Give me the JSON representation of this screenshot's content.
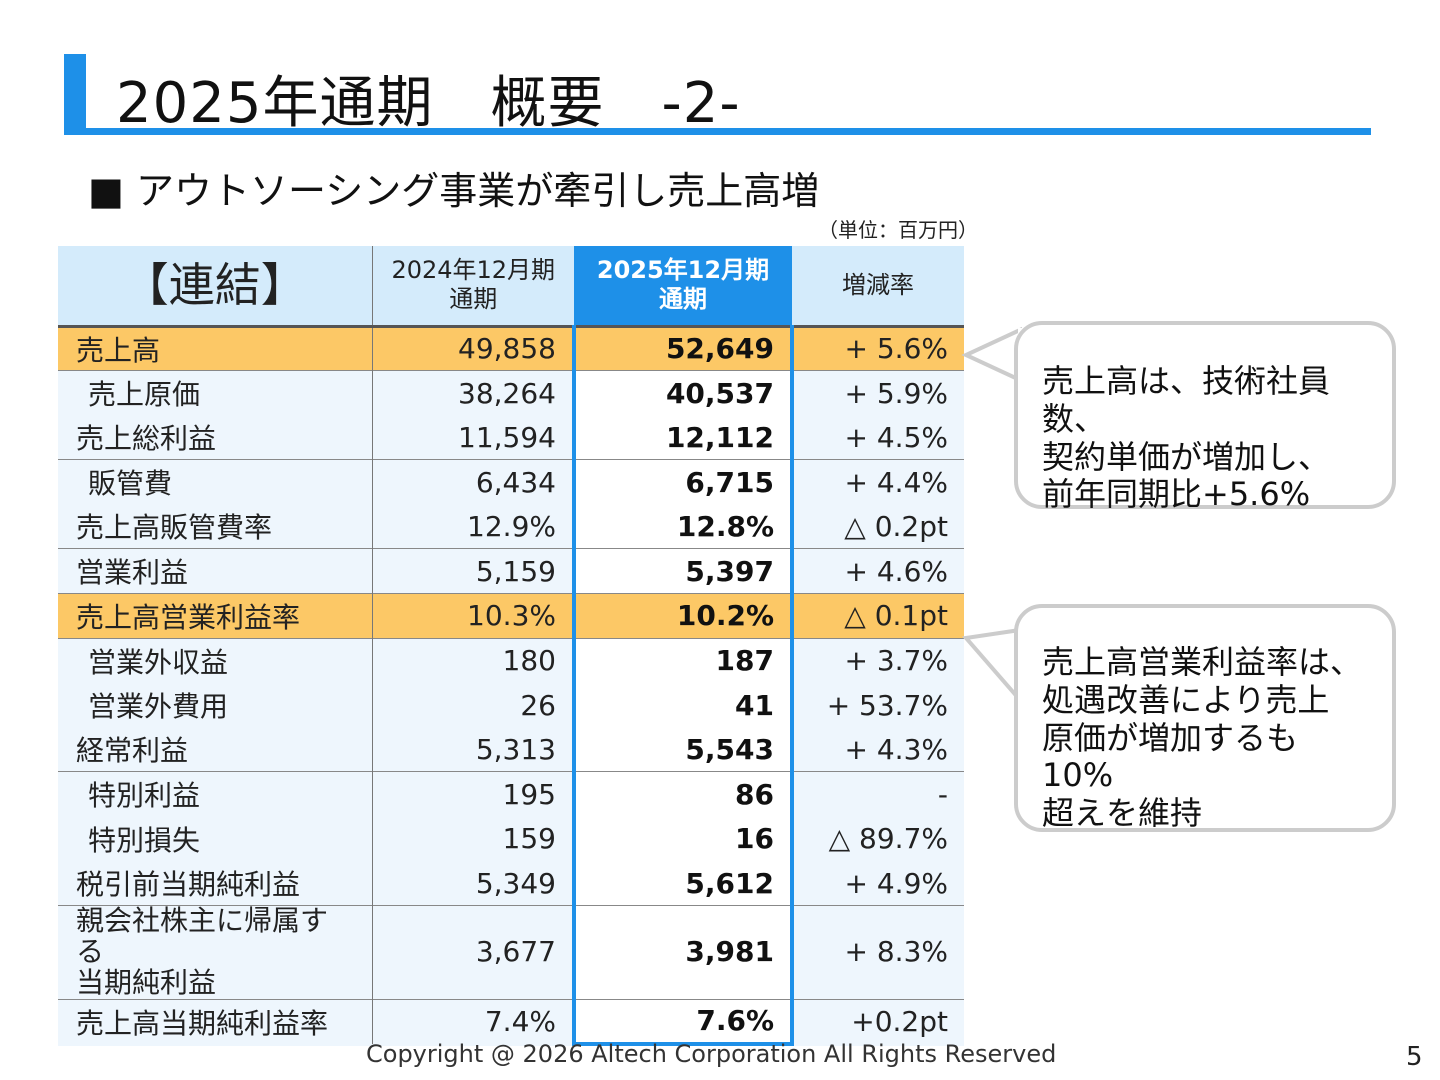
{
  "title": "2025年通期　概要　-2-",
  "subtitle": "■ アウトソーシング事業が牽引し売上高増",
  "unit": "（単位：百万円）",
  "table": {
    "headers": [
      "【連結】",
      "2024年12月期\n通期",
      "2025年12月期\n通期",
      "増減率"
    ],
    "rows": [
      {
        "label": "売上高",
        "prev": "49,858",
        "cur": "52,649",
        "chg": "+ 5.6%"
      },
      {
        "label": "売上原価",
        "prev": "38,264",
        "cur": "40,537",
        "chg": "+ 5.9%"
      },
      {
        "label": "売上総利益",
        "prev": "11,594",
        "cur": "12,112",
        "chg": "+ 4.5%"
      },
      {
        "label": "販管費",
        "prev": "6,434",
        "cur": "6,715",
        "chg": "+ 4.4%"
      },
      {
        "label": "売上高販管費率",
        "prev": "12.9%",
        "cur": "12.8%",
        "chg": "△ 0.2pt"
      },
      {
        "label": "営業利益",
        "prev": "5,159",
        "cur": "5,397",
        "chg": "+ 4.6%"
      },
      {
        "label": "売上高営業利益率",
        "prev": "10.3%",
        "cur": "10.2%",
        "chg": "△ 0.1pt"
      },
      {
        "label": "営業外収益",
        "prev": "180",
        "cur": "187",
        "chg": "+ 3.7%"
      },
      {
        "label": "営業外費用",
        "prev": "26",
        "cur": "41",
        "chg": "+ 53.7%"
      },
      {
        "label": "経常利益",
        "prev": "5,313",
        "cur": "5,543",
        "chg": "+ 4.3%"
      },
      {
        "label": "特別利益",
        "prev": "195",
        "cur": "86",
        "chg": "-"
      },
      {
        "label": "特別損失",
        "prev": "159",
        "cur": "16",
        "chg": "△ 89.7%"
      },
      {
        "label": "税引前当期純利益",
        "prev": "5,349",
        "cur": "5,612",
        "chg": "+ 4.9%"
      },
      {
        "label": "親会社株主に帰属する\n当期純利益",
        "prev": "3,677",
        "cur": "3,981",
        "chg": "+ 8.3%"
      },
      {
        "label": "売上高当期純利益率",
        "prev": "7.4%",
        "cur": "7.6%",
        "chg": "+0.2pt"
      }
    ]
  },
  "callouts": [
    "売上高は、技術社員数、\n契約単価が増加し、\n前年同期比+5.6%",
    "売上高営業利益率は、\n処遇改善により売上\n原価が増加するも10%\n超えを維持"
  ],
  "footer": "Copyright @ 2026  Altech Corporation All Rights Reserved",
  "page_number": "5",
  "colors": {
    "accent": "#1e90e8",
    "highlight": "#fcc866",
    "header_bg": "#d4ebfb"
  }
}
